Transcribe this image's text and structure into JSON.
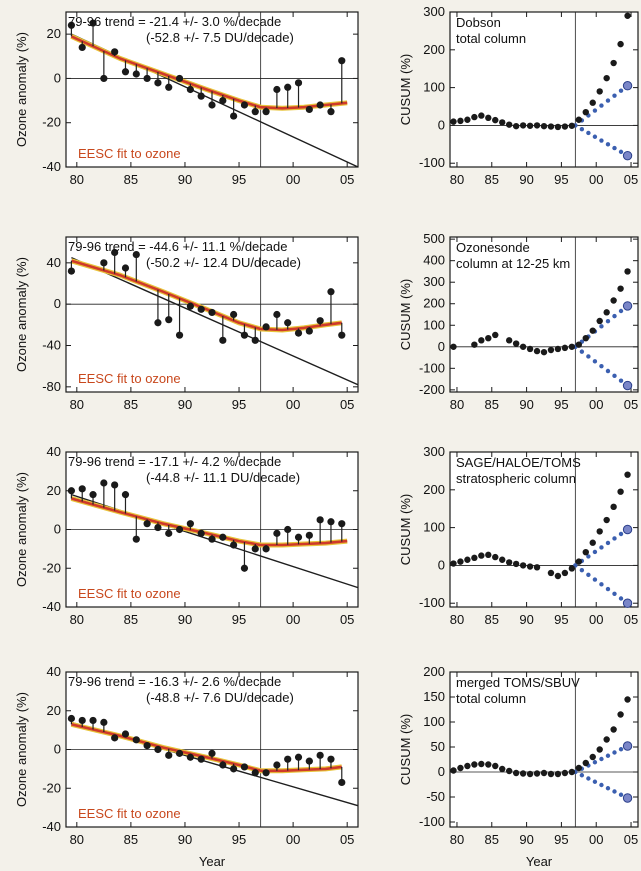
{
  "xlabel_bottom": "Year",
  "chart_data": [
    {
      "type": "scatter",
      "panel": "anomaly-1",
      "ylabel": "Ozone anomaly (%)",
      "trend_line1": "79-96 trend = -21.4 +/-  3.0 %/decade",
      "trend_line2": "(-52.8 +/-  7.5 DU/decade)",
      "fit_label": "EESC fit to ozone",
      "xlim": [
        1979,
        2006
      ],
      "ylim": [
        -40,
        30
      ],
      "x_ticks": [
        1980,
        1985,
        1990,
        1995,
        2000,
        2005
      ],
      "x_tick_labels": [
        "80",
        "85",
        "90",
        "95",
        "00",
        "05"
      ],
      "y_ticks": [
        -40,
        -20,
        0,
        20
      ],
      "y_tick_labels": [
        "-40",
        "-20",
        "0",
        "20"
      ],
      "vline_x": 1997,
      "trend": [
        [
          1979.5,
          20
        ],
        [
          2006,
          -40
        ]
      ],
      "eesc": [
        [
          1979.5,
          19
        ],
        [
          1984,
          9
        ],
        [
          1988,
          2
        ],
        [
          1992,
          -5
        ],
        [
          1995,
          -10
        ],
        [
          1997,
          -13
        ],
        [
          1999,
          -13.5
        ],
        [
          2001,
          -13
        ],
        [
          2003,
          -12
        ],
        [
          2005,
          -11
        ]
      ],
      "x": [
        1979.5,
        1980.5,
        1981.5,
        1982.5,
        1983.5,
        1984.5,
        1985.5,
        1986.5,
        1987.5,
        1988.5,
        1989.5,
        1990.5,
        1991.5,
        1992.5,
        1993.5,
        1994.5,
        1995.5,
        1996.5,
        1997.5,
        1998.5,
        1999.5,
        2000.5,
        2001.5,
        2002.5,
        2003.5,
        2004.5
      ],
      "y": [
        24,
        14,
        25,
        0,
        12,
        3,
        2,
        0,
        -2,
        -4,
        0,
        -5,
        -8,
        -12,
        -10,
        -17,
        -12,
        -15,
        -15,
        -5,
        -4,
        -2,
        -14,
        -12,
        -15,
        8
      ]
    },
    {
      "type": "scatter",
      "panel": "cusum-1",
      "ylabel": "CUSUM (%)",
      "title_line1": "Dobson",
      "title_line2": "total column",
      "xlim": [
        1979,
        2006
      ],
      "ylim": [
        -110,
        300
      ],
      "x_ticks": [
        1980,
        1985,
        1990,
        1995,
        2000,
        2005
      ],
      "x_tick_labels": [
        "80",
        "85",
        "90",
        "95",
        "00",
        "05"
      ],
      "y_ticks": [
        -100,
        0,
        100,
        200,
        300
      ],
      "y_tick_labels": [
        "-100",
        "0",
        "100",
        "200",
        "300"
      ],
      "vline_x": 1997,
      "x": [
        1979.5,
        1980.5,
        1981.5,
        1982.5,
        1983.5,
        1984.5,
        1985.5,
        1986.5,
        1987.5,
        1988.5,
        1989.5,
        1990.5,
        1991.5,
        1992.5,
        1993.5,
        1994.5,
        1995.5,
        1996.5
      ],
      "y": [
        10,
        12,
        15,
        22,
        26,
        20,
        14,
        8,
        2,
        -2,
        0,
        -1,
        0,
        -2,
        -3,
        -4,
        -3,
        -1
      ],
      "x_after": [
        1997.5,
        1998.5,
        1999.5,
        2000.5,
        2001.5,
        2002.5,
        2003.5,
        2004.5
      ],
      "y_after": [
        15,
        35,
        60,
        90,
        125,
        165,
        215,
        290
      ],
      "blue_up": [
        [
          1997,
          0
        ],
        [
          2004.5,
          105
        ]
      ],
      "blue_down": [
        [
          1997,
          0
        ],
        [
          2004.5,
          -80
        ]
      ]
    },
    {
      "type": "scatter",
      "panel": "anomaly-2",
      "ylabel": "Ozone anomaly (%)",
      "trend_line1": "79-96 trend = -44.6 +/- 11.1 %/decade",
      "trend_line2": "(-50.2 +/- 12.4 DU/decade)",
      "fit_label": "EESC fit to ozone",
      "xlim": [
        1979,
        2006
      ],
      "ylim": [
        -85,
        65
      ],
      "x_ticks": [
        1980,
        1985,
        1990,
        1995,
        2000,
        2005
      ],
      "x_tick_labels": [
        "80",
        "85",
        "90",
        "95",
        "00",
        "05"
      ],
      "y_ticks": [
        -80,
        -40,
        0,
        40
      ],
      "y_tick_labels": [
        "-80",
        "-40",
        "0",
        "40"
      ],
      "vline_x": 1997,
      "trend": [
        [
          1979.5,
          45
        ],
        [
          2006,
          -78
        ]
      ],
      "eesc": [
        [
          1979.5,
          42
        ],
        [
          1984,
          28
        ],
        [
          1988,
          12
        ],
        [
          1992,
          -5
        ],
        [
          1995,
          -18
        ],
        [
          1997,
          -24
        ],
        [
          1999,
          -25
        ],
        [
          2001,
          -23
        ],
        [
          2003,
          -20
        ],
        [
          2004.5,
          -18
        ]
      ],
      "x": [
        1979.5,
        1982.5,
        1983.5,
        1984.5,
        1985.5,
        1987.5,
        1988.5,
        1989.5,
        1990.5,
        1991.5,
        1992.5,
        1993.5,
        1994.5,
        1995.5,
        1996.5,
        1997.5,
        1998.5,
        1999.5,
        2000.5,
        2001.5,
        2002.5,
        2003.5,
        2004.5
      ],
      "y": [
        32,
        40,
        50,
        35,
        48,
        -18,
        -15,
        -30,
        -2,
        -5,
        -8,
        -35,
        -10,
        -30,
        -35,
        -22,
        -10,
        -18,
        -28,
        -26,
        -16,
        12,
        -30
      ]
    },
    {
      "type": "scatter",
      "panel": "cusum-2",
      "ylabel": "CUSUM (%)",
      "title_line1": "Ozonesonde",
      "title_line2": "column at 12-25 km",
      "xlim": [
        1979,
        2006
      ],
      "ylim": [
        -210,
        510
      ],
      "x_ticks": [
        1980,
        1985,
        1990,
        1995,
        2000,
        2005
      ],
      "x_tick_labels": [
        "80",
        "85",
        "90",
        "95",
        "00",
        "05"
      ],
      "y_ticks": [
        -200,
        -100,
        0,
        100,
        200,
        300,
        400,
        500
      ],
      "y_tick_labels": [
        "-200",
        "-100",
        "0",
        "100",
        "200",
        "300",
        "400",
        "500"
      ],
      "vline_x": 1997,
      "x": [
        1979.5,
        1982.5,
        1983.5,
        1984.5,
        1985.5,
        1987.5,
        1988.5,
        1989.5,
        1990.5,
        1991.5,
        1992.5,
        1993.5,
        1994.5,
        1995.5,
        1996.5
      ],
      "y": [
        0,
        10,
        30,
        40,
        55,
        30,
        15,
        0,
        -10,
        -20,
        -25,
        -15,
        -10,
        -5,
        0
      ],
      "x_after": [
        1997.5,
        1998.5,
        1999.5,
        2000.5,
        2001.5,
        2002.5,
        2003.5,
        2004.5
      ],
      "y_after": [
        10,
        40,
        75,
        120,
        160,
        215,
        270,
        350
      ],
      "blue_up": [
        [
          1997,
          0
        ],
        [
          2004.5,
          190
        ]
      ],
      "blue_down": [
        [
          1997,
          0
        ],
        [
          2004.5,
          -180
        ]
      ]
    },
    {
      "type": "scatter",
      "panel": "anomaly-3",
      "ylabel": "Ozone anomaly (%)",
      "trend_line1": "79-96 trend = -17.1 +/-  4.2 %/decade",
      "trend_line2": "(-44.8 +/- 11.1 DU/decade)",
      "fit_label": "EESC fit to ozone",
      "xlim": [
        1979,
        2006
      ],
      "ylim": [
        -40,
        40
      ],
      "x_ticks": [
        1980,
        1985,
        1990,
        1995,
        2000,
        2005
      ],
      "x_tick_labels": [
        "80",
        "85",
        "90",
        "95",
        "00",
        "05"
      ],
      "y_ticks": [
        -40,
        -20,
        0,
        20,
        40
      ],
      "y_tick_labels": [
        "-40",
        "-20",
        "0",
        "20",
        "40"
      ],
      "vline_x": 1997,
      "trend": [
        [
          1979.5,
          18
        ],
        [
          2006,
          -30
        ]
      ],
      "eesc": [
        [
          1979.5,
          16
        ],
        [
          1984,
          9
        ],
        [
          1988,
          3
        ],
        [
          1992,
          -2
        ],
        [
          1995,
          -6
        ],
        [
          1997,
          -8
        ],
        [
          1999,
          -8
        ],
        [
          2001,
          -7.5
        ],
        [
          2003,
          -7
        ],
        [
          2005,
          -6
        ]
      ],
      "x": [
        1979.5,
        1980.5,
        1981.5,
        1982.5,
        1983.5,
        1984.5,
        1985.5,
        1986.5,
        1987.5,
        1988.5,
        1989.5,
        1990.5,
        1991.5,
        1992.5,
        1993.5,
        1994.5,
        1995.5,
        1996.5,
        1997.5,
        1998.5,
        1999.5,
        2000.5,
        2001.5,
        2002.5,
        2003.5,
        2004.5
      ],
      "y": [
        20,
        21,
        18,
        24,
        23,
        18,
        -5,
        3,
        1,
        -2,
        0,
        3,
        -2,
        -5,
        -4,
        -8,
        -20,
        -10,
        -10,
        -2,
        0,
        -4,
        -3,
        5,
        4,
        3
      ]
    },
    {
      "type": "scatter",
      "panel": "cusum-3",
      "ylabel": "CUSUM (%)",
      "title_line1": "SAGE/HALOE/TOMS",
      "title_line2": "stratospheric column",
      "xlim": [
        1979,
        2006
      ],
      "ylim": [
        -110,
        300
      ],
      "x_ticks": [
        1980,
        1985,
        1990,
        1995,
        2000,
        2005
      ],
      "x_tick_labels": [
        "80",
        "85",
        "90",
        "95",
        "00",
        "05"
      ],
      "y_ticks": [
        -100,
        0,
        100,
        200,
        300
      ],
      "y_tick_labels": [
        "-100",
        "0",
        "100",
        "200",
        "300"
      ],
      "vline_x": 1997,
      "x": [
        1979.5,
        1980.5,
        1981.5,
        1982.5,
        1983.5,
        1984.5,
        1985.5,
        1986.5,
        1987.5,
        1988.5,
        1989.5,
        1990.5,
        1991.5,
        1993.5,
        1994.5,
        1995.5,
        1996.5
      ],
      "y": [
        5,
        10,
        15,
        20,
        26,
        28,
        22,
        15,
        8,
        4,
        0,
        -3,
        -5,
        -20,
        -28,
        -20,
        -8
      ],
      "x_after": [
        1997.5,
        1998.5,
        1999.5,
        2000.5,
        2001.5,
        2002.5,
        2003.5,
        2004.5
      ],
      "y_after": [
        10,
        35,
        60,
        90,
        120,
        155,
        195,
        240
      ],
      "blue_up": [
        [
          1997,
          0
        ],
        [
          2004.5,
          95
        ]
      ],
      "blue_down": [
        [
          1997,
          0
        ],
        [
          2004.5,
          -100
        ]
      ]
    },
    {
      "type": "scatter",
      "panel": "anomaly-4",
      "ylabel": "Ozone anomaly (%)",
      "trend_line1": "79-96 trend = -16.3 +/-  2.6 %/decade",
      "trend_line2": "(-48.8 +/-  7.6 DU/decade)",
      "fit_label": "EESC fit to ozone",
      "xlim": [
        1979,
        2006
      ],
      "ylim": [
        -40,
        40
      ],
      "x_ticks": [
        1980,
        1985,
        1990,
        1995,
        2000,
        2005
      ],
      "x_tick_labels": [
        "80",
        "85",
        "90",
        "95",
        "00",
        "05"
      ],
      "y_ticks": [
        -40,
        -20,
        0,
        20,
        40
      ],
      "y_tick_labels": [
        "-40",
        "-20",
        "0",
        "20",
        "40"
      ],
      "vline_x": 1997,
      "trend": [
        [
          1979.5,
          14
        ],
        [
          2006,
          -29
        ]
      ],
      "eesc": [
        [
          1979.5,
          13
        ],
        [
          1984,
          7
        ],
        [
          1988,
          1
        ],
        [
          1992,
          -4
        ],
        [
          1995,
          -8
        ],
        [
          1997,
          -11
        ],
        [
          1999,
          -11
        ],
        [
          2001,
          -10.5
        ],
        [
          2003,
          -10
        ],
        [
          2004.5,
          -9
        ]
      ],
      "x": [
        1979.5,
        1980.5,
        1981.5,
        1982.5,
        1983.5,
        1984.5,
        1985.5,
        1986.5,
        1987.5,
        1988.5,
        1989.5,
        1990.5,
        1991.5,
        1992.5,
        1993.5,
        1994.5,
        1995.5,
        1996.5,
        1997.5,
        1998.5,
        1999.5,
        2000.5,
        2001.5,
        2002.5,
        2003.5,
        2004.5
      ],
      "y": [
        16,
        15,
        15,
        14,
        6,
        8,
        5,
        2,
        0,
        -3,
        -2,
        -4,
        -5,
        -2,
        -8,
        -10,
        -9,
        -12,
        -12,
        -8,
        -5,
        -4,
        -6,
        -3,
        -5,
        -17
      ]
    },
    {
      "type": "scatter",
      "panel": "cusum-4",
      "ylabel": "CUSUM (%)",
      "title_line1": "merged TOMS/SBUV",
      "title_line2": "total column",
      "xlim": [
        1979,
        2006
      ],
      "ylim": [
        -110,
        200
      ],
      "x_ticks": [
        1980,
        1985,
        1990,
        1995,
        2000,
        2005
      ],
      "x_tick_labels": [
        "80",
        "85",
        "90",
        "95",
        "00",
        "05"
      ],
      "y_ticks": [
        -100,
        -50,
        0,
        50,
        100,
        150,
        200
      ],
      "y_tick_labels": [
        "-100",
        "-50",
        "0",
        "50",
        "100",
        "150",
        "200"
      ],
      "vline_x": 1997,
      "x": [
        1979.5,
        1980.5,
        1981.5,
        1982.5,
        1983.5,
        1984.5,
        1985.5,
        1986.5,
        1987.5,
        1988.5,
        1989.5,
        1990.5,
        1991.5,
        1992.5,
        1993.5,
        1994.5,
        1995.5,
        1996.5
      ],
      "y": [
        3,
        8,
        12,
        15,
        16,
        15,
        12,
        6,
        2,
        -2,
        -3,
        -4,
        -3,
        -2,
        -4,
        -4,
        -2,
        0
      ],
      "x_after": [
        1997.5,
        1998.5,
        1999.5,
        2000.5,
        2001.5,
        2002.5,
        2003.5,
        2004.5
      ],
      "y_after": [
        8,
        18,
        30,
        45,
        65,
        85,
        115,
        145
      ],
      "blue_up": [
        [
          1997,
          0
        ],
        [
          2004.5,
          52
        ]
      ],
      "blue_down": [
        [
          1997,
          0
        ],
        [
          2004.5,
          -52
        ]
      ]
    }
  ]
}
